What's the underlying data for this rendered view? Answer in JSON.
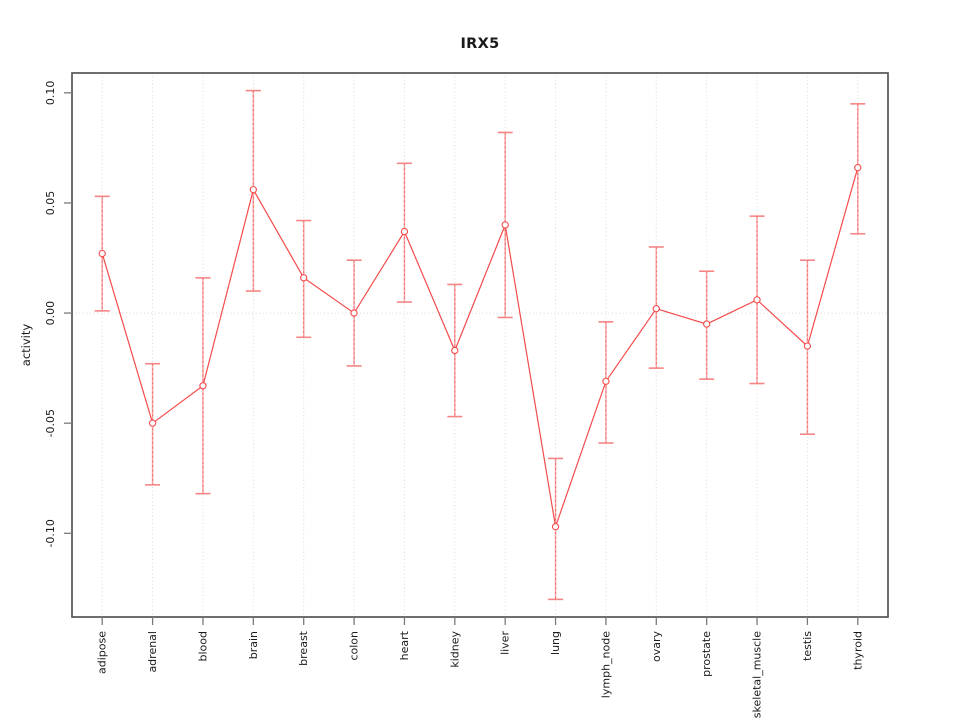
{
  "page": {
    "background": "#ffffff"
  },
  "chart_data": {
    "type": "line",
    "title": "IRX5",
    "xlabel": "",
    "ylabel": "activity",
    "legend": "none",
    "grid": {
      "vertical_dotted_per_category": true,
      "horizontal_dotted_at_zero": true
    },
    "categories": [
      "adipose",
      "adrenal",
      "blood",
      "brain",
      "breast",
      "colon",
      "heart",
      "kidney",
      "liver",
      "lung",
      "lymph_node",
      "ovary",
      "prostate",
      "skeletal_muscle",
      "testis",
      "thyroid"
    ],
    "series": [
      {
        "name": "IRX5 activity",
        "values": [
          0.027,
          -0.05,
          -0.033,
          0.056,
          0.016,
          0.0,
          0.037,
          -0.017,
          0.04,
          -0.097,
          -0.031,
          0.002,
          -0.005,
          0.006,
          -0.015,
          0.066
        ],
        "error_low": [
          0.001,
          -0.078,
          -0.082,
          0.01,
          -0.011,
          -0.024,
          0.005,
          -0.047,
          -0.002,
          -0.13,
          -0.059,
          -0.025,
          -0.03,
          -0.032,
          -0.055,
          0.036
        ],
        "error_high": [
          0.053,
          -0.023,
          0.016,
          0.101,
          0.042,
          0.024,
          0.068,
          0.013,
          0.082,
          -0.066,
          -0.004,
          0.03,
          0.019,
          0.044,
          0.024,
          0.095
        ]
      }
    ],
    "ylim": [
      -0.138,
      0.109
    ],
    "yticks": [
      {
        "value": 0.1,
        "label": "0.10"
      },
      {
        "value": 0.05,
        "label": "0.05"
      },
      {
        "value": 0.0,
        "label": "0.00"
      },
      {
        "value": -0.05,
        "label": "-0.05"
      },
      {
        "value": -0.1,
        "label": "-0.10"
      }
    ],
    "colors": {
      "line": "#f54b4b",
      "point_stroke": "#f54b4b",
      "point_fill": "#ffffff",
      "error_stem": "#f9a0a0",
      "error_dash": "#f25c5c",
      "error_cap": "#f58585",
      "grid": "#d9d9d9",
      "zero_line": "#d4d4d4",
      "box": "#555555",
      "tick": "#7a7a7a",
      "text": "#1a1a1a"
    }
  }
}
